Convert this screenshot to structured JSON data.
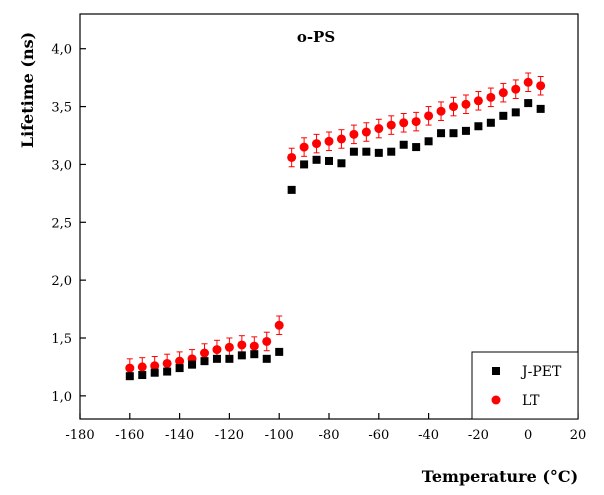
{
  "chart_data": {
    "type": "scatter",
    "title": "o-PS",
    "xlabel": "Temperature (°C)",
    "ylabel": "Lifetime (ns)",
    "xlim": [
      -180,
      20
    ],
    "ylim": [
      0.8,
      4.3
    ],
    "xticks": [
      -180,
      -160,
      -140,
      -120,
      -100,
      -80,
      -60,
      -40,
      -20,
      0,
      20
    ],
    "xtick_labels": [
      "-180",
      "-160",
      "-140",
      "-120",
      "-100",
      "-80",
      "-60",
      "-40",
      "-20",
      "0",
      "20"
    ],
    "yticks": [
      1.0,
      1.5,
      2.0,
      2.5,
      3.0,
      3.5,
      4.0
    ],
    "ytick_labels": [
      "1,0",
      "1,5",
      "2,0",
      "2,5",
      "3,0",
      "3,5",
      "4,0"
    ],
    "legend_position": "bottom-right",
    "series": [
      {
        "name": "J-PET",
        "marker": "square",
        "color": "#000000",
        "x": [
          -160,
          -155,
          -150,
          -145,
          -140,
          -135,
          -130,
          -125,
          -120,
          -115,
          -110,
          -105,
          -100,
          -95,
          -90,
          -85,
          -80,
          -75,
          -70,
          -65,
          -60,
          -55,
          -50,
          -45,
          -40,
          -35,
          -30,
          -25,
          -20,
          -15,
          -10,
          -5,
          0,
          5
        ],
        "y": [
          1.17,
          1.18,
          1.2,
          1.21,
          1.24,
          1.27,
          1.3,
          1.32,
          1.32,
          1.35,
          1.36,
          1.32,
          1.38,
          2.78,
          3.0,
          3.04,
          3.03,
          3.01,
          3.11,
          3.11,
          3.1,
          3.11,
          3.17,
          3.15,
          3.2,
          3.27,
          3.27,
          3.29,
          3.33,
          3.36,
          3.42,
          3.45,
          3.53,
          3.48
        ]
      },
      {
        "name": "LT",
        "marker": "circle",
        "color": "#ff0000",
        "x": [
          -160,
          -155,
          -150,
          -145,
          -140,
          -135,
          -130,
          -125,
          -120,
          -115,
          -110,
          -105,
          -100,
          -95,
          -90,
          -85,
          -80,
          -75,
          -70,
          -65,
          -60,
          -55,
          -50,
          -45,
          -40,
          -35,
          -30,
          -25,
          -20,
          -15,
          -10,
          -5,
          0,
          5
        ],
        "y": [
          1.24,
          1.25,
          1.26,
          1.28,
          1.3,
          1.32,
          1.37,
          1.4,
          1.42,
          1.44,
          1.43,
          1.47,
          1.61,
          3.06,
          3.15,
          3.18,
          3.2,
          3.22,
          3.26,
          3.28,
          3.31,
          3.34,
          3.36,
          3.37,
          3.42,
          3.46,
          3.5,
          3.52,
          3.55,
          3.58,
          3.62,
          3.65,
          3.71,
          3.68
        ],
        "error": 0.08
      }
    ]
  }
}
